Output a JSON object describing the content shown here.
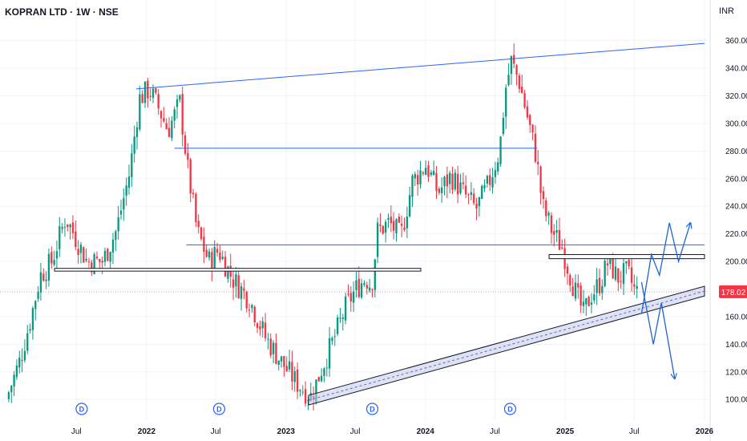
{
  "header": {
    "title": "KOPRAN LTD · 1W · NSE",
    "currency": "INR"
  },
  "colors": {
    "up": "#089981",
    "down": "#f23645",
    "trendline": "#2962ff",
    "channel_fill": "#c5cae9",
    "arrow": "#1e63d6",
    "price_line": "#f23645"
  },
  "chart_data": {
    "type": "candlestick",
    "symbol": "KOPRAN LTD",
    "interval": "1W",
    "exchange": "NSE",
    "currency": "INR",
    "last_price": "178.02",
    "y_ticks": [
      100,
      120,
      140,
      160,
      180,
      200,
      220,
      240,
      260,
      280,
      300,
      320,
      340,
      360
    ],
    "y_tick_labels": [
      "100.00",
      "120.00",
      "140.00",
      "160.00",
      "180.00",
      "200.00",
      "220.00",
      "240.00",
      "260.00",
      "280.00",
      "300.00",
      "320.00",
      "340.00",
      "360.00"
    ],
    "ylim": [
      92,
      372
    ],
    "x_labels": [
      {
        "label": "Jul",
        "date": "2021-07-01",
        "bold": false
      },
      {
        "label": "2022",
        "date": "2022-01-01",
        "bold": true
      },
      {
        "label": "Jul",
        "date": "2022-07-01",
        "bold": false
      },
      {
        "label": "2023",
        "date": "2023-01-01",
        "bold": true
      },
      {
        "label": "Jul",
        "date": "2023-07-01",
        "bold": false
      },
      {
        "label": "2024",
        "date": "2024-01-01",
        "bold": true
      },
      {
        "label": "Jul",
        "date": "2024-07-01",
        "bold": false
      },
      {
        "label": "2025",
        "date": "2025-01-01",
        "bold": true
      },
      {
        "label": "Jul",
        "date": "2025-07-01",
        "bold": false
      },
      {
        "label": "2026",
        "date": "2026-01-01",
        "bold": true
      }
    ],
    "dividend_markers": [
      {
        "label": "D",
        "date": "2021-07-15"
      },
      {
        "label": "D",
        "date": "2022-07-10"
      },
      {
        "label": "D",
        "date": "2023-08-15"
      },
      {
        "label": "D",
        "date": "2024-08-10"
      }
    ],
    "price_path": [
      [
        "2021-01-05",
        100
      ],
      [
        "2021-02-10",
        128
      ],
      [
        "2021-03-10",
        158
      ],
      [
        "2021-04-05",
        190
      ],
      [
        "2021-05-05",
        200
      ],
      [
        "2021-06-10",
        232
      ],
      [
        "2021-07-10",
        215
      ],
      [
        "2021-08-05",
        200
      ],
      [
        "2021-09-15",
        200
      ],
      [
        "2021-10-20",
        222
      ],
      [
        "2021-11-25",
        265
      ],
      [
        "2021-12-20",
        318
      ],
      [
        "2022-01-15",
        325
      ],
      [
        "2022-02-10",
        310
      ],
      [
        "2022-03-05",
        295
      ],
      [
        "2022-04-05",
        315
      ],
      [
        "2022-04-25",
        268
      ],
      [
        "2022-05-20",
        222
      ],
      [
        "2022-06-20",
        200
      ],
      [
        "2022-07-15",
        208
      ],
      [
        "2022-08-20",
        188
      ],
      [
        "2022-10-05",
        172
      ],
      [
        "2022-11-15",
        145
      ],
      [
        "2022-12-25",
        128
      ],
      [
        "2023-02-05",
        112
      ],
      [
        "2023-03-15",
        102
      ],
      [
        "2023-04-15",
        125
      ],
      [
        "2023-05-15",
        145
      ],
      [
        "2023-06-15",
        168
      ],
      [
        "2023-07-10",
        180
      ],
      [
        "2023-08-05",
        188
      ],
      [
        "2023-08-20",
        182
      ],
      [
        "2023-09-05",
        222
      ],
      [
        "2023-10-05",
        228
      ],
      [
        "2023-11-05",
        218
      ],
      [
        "2023-12-05",
        258
      ],
      [
        "2024-01-10",
        270
      ],
      [
        "2024-02-10",
        250
      ],
      [
        "2024-03-15",
        262
      ],
      [
        "2024-04-15",
        250
      ],
      [
        "2024-05-20",
        238
      ],
      [
        "2024-06-20",
        255
      ],
      [
        "2024-07-20",
        280
      ],
      [
        "2024-08-05",
        325
      ],
      [
        "2024-08-20",
        345
      ],
      [
        "2024-09-10",
        330
      ],
      [
        "2024-10-05",
        300
      ],
      [
        "2024-10-25",
        275
      ],
      [
        "2024-11-10",
        240
      ],
      [
        "2024-12-05",
        222
      ],
      [
        "2024-12-31",
        210
      ],
      [
        "2025-02-01",
        180
      ],
      [
        "2025-02-25",
        162
      ],
      [
        "2025-03-15",
        175
      ],
      [
        "2025-04-10",
        185
      ],
      [
        "2025-05-01",
        200
      ],
      [
        "2025-05-25",
        188
      ],
      [
        "2025-06-20",
        192
      ],
      [
        "2025-07-10",
        178
      ]
    ],
    "annotations": {
      "resistance_trendline": {
        "from": [
          "2021-12-05",
          325
        ],
        "to": [
          "2026-01-01",
          358
        ]
      },
      "horizontal_levels": [
        {
          "price": 282,
          "from": "2022-03-15",
          "to": "2024-10-20"
        },
        {
          "price": 212,
          "from": "2022-04-15",
          "to": "2026-01-01"
        }
      ],
      "support_zones": [
        {
          "low": 193,
          "high": 195,
          "from": "2021-05-05",
          "to": "2023-12-20"
        },
        {
          "low": 202,
          "high": 205,
          "from": "2024-11-20",
          "to": "2026-01-01"
        }
      ],
      "rising_channel": {
        "upper_from": [
          "2023-03-01",
          103
        ],
        "upper_to": [
          "2026-01-01",
          182
        ],
        "lower_from": [
          "2023-03-01",
          96
        ],
        "lower_to": [
          "2026-01-01",
          175
        ]
      },
      "bullish_path": [
        [
          "2025-07-20",
          162
        ],
        [
          "2025-08-15",
          205
        ],
        [
          "2025-09-05",
          190
        ],
        [
          "2025-10-01",
          228
        ],
        [
          "2025-10-25",
          200
        ],
        [
          "2025-11-25",
          228
        ]
      ],
      "bearish_path": [
        [
          "2025-07-20",
          185
        ],
        [
          "2025-08-20",
          140
        ],
        [
          "2025-09-10",
          170
        ],
        [
          "2025-10-15",
          115
        ]
      ]
    }
  }
}
